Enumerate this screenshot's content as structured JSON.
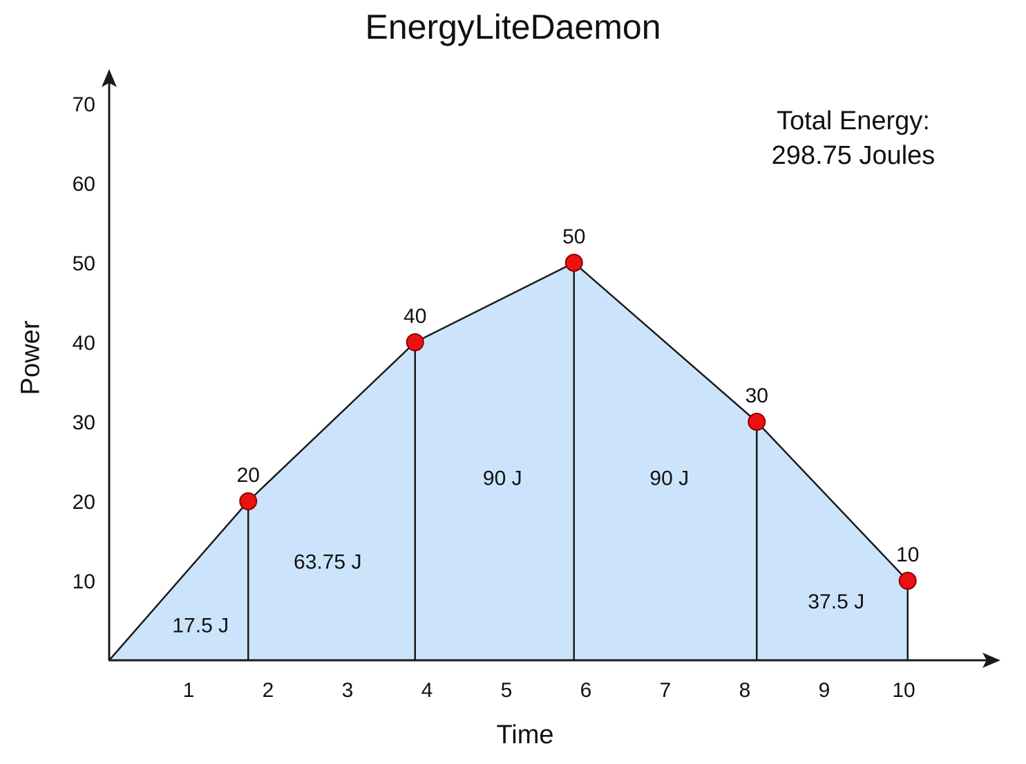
{
  "chart_data": {
    "type": "area",
    "title": "EnergyLiteDaemon",
    "xlabel": "Time",
    "ylabel": "Power",
    "xlim": [
      0,
      11.25
    ],
    "ylim": [
      0,
      70
    ],
    "x_ticks": [
      1,
      2,
      3,
      4,
      5,
      6,
      7,
      8,
      9,
      10
    ],
    "y_ticks": [
      10,
      20,
      30,
      40,
      50,
      60,
      70
    ],
    "points": [
      {
        "x": 0,
        "y": 0,
        "label": ""
      },
      {
        "x": 1.75,
        "y": 20,
        "label": "20"
      },
      {
        "x": 3.85,
        "y": 40,
        "label": "40"
      },
      {
        "x": 5.85,
        "y": 50,
        "label": "50"
      },
      {
        "x": 8.15,
        "y": 30,
        "label": "30"
      },
      {
        "x": 10.05,
        "y": 10,
        "label": "10"
      }
    ],
    "segments": [
      {
        "label": "17.5 J",
        "x": 1.15,
        "y": 4.5
      },
      {
        "label": "63.75 J",
        "x": 2.75,
        "y": 12.5
      },
      {
        "label": "90 J",
        "x": 4.95,
        "y": 23
      },
      {
        "label": "90 J",
        "x": 7.05,
        "y": 23
      },
      {
        "label": "37.5 J",
        "x": 9.15,
        "y": 7.5
      }
    ],
    "annotation": {
      "line1": "Total Energy:",
      "line2": "298.75 Joules"
    },
    "colors": {
      "fill": "#cce4fb",
      "line": "#1a1a1a",
      "marker": "#ee1111",
      "marker_edge": "#8b0000"
    }
  }
}
